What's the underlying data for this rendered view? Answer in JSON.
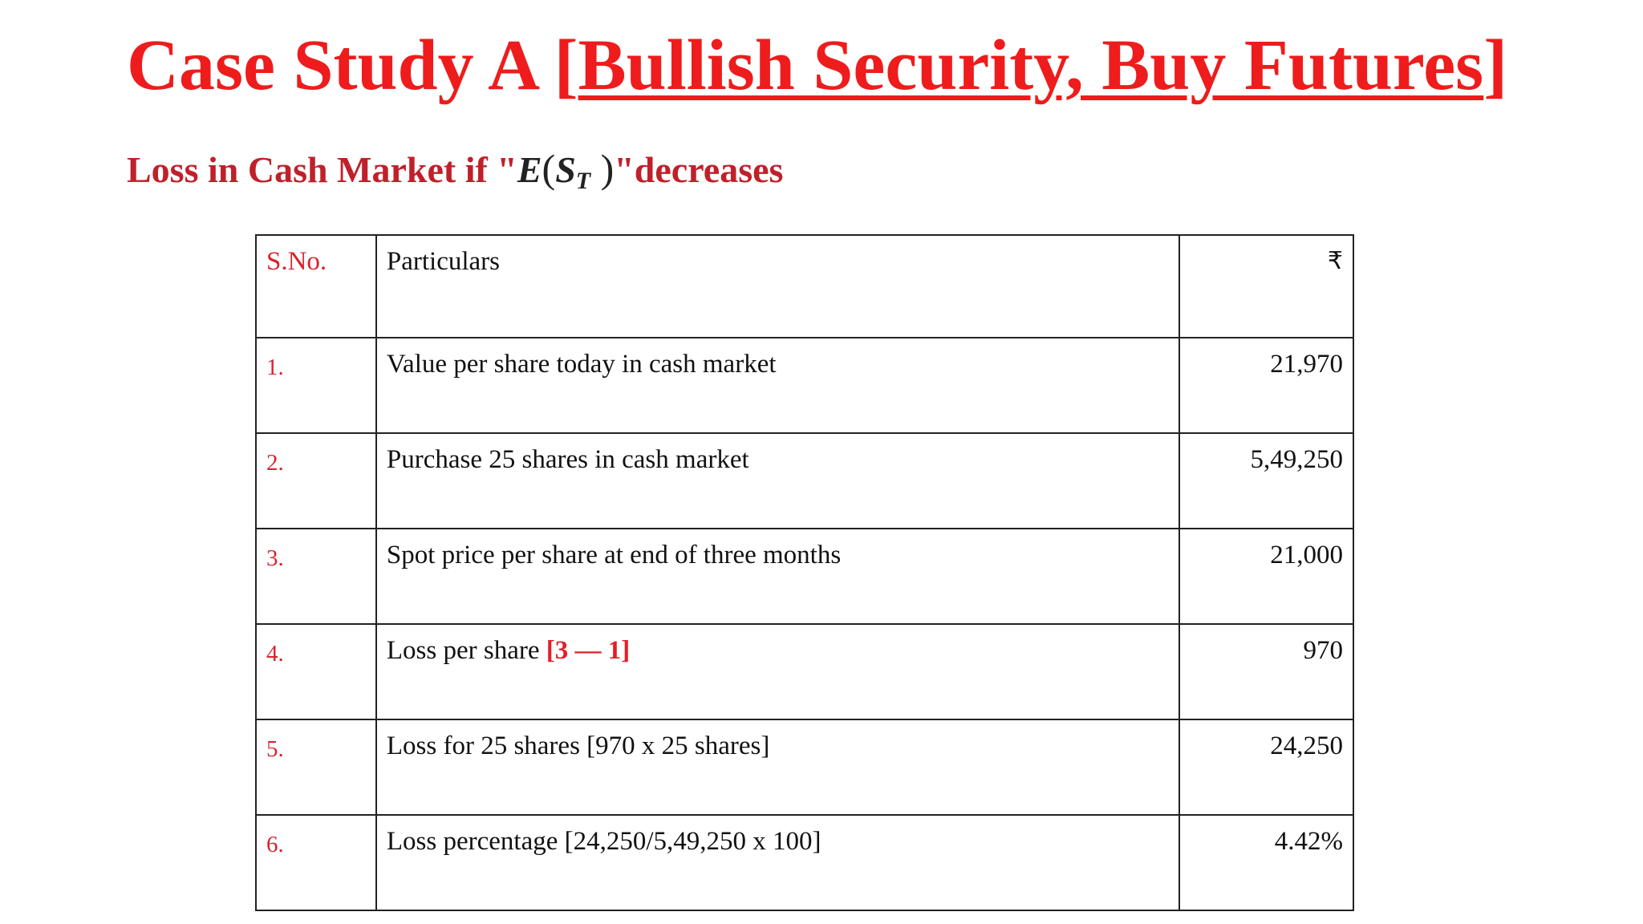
{
  "title": {
    "prefix": "Case Study A [",
    "underlined": "Bullish Security, Buy Futures",
    "suffix": "]"
  },
  "subtitle": {
    "lead": "Loss in Cash Market if \"",
    "math_fn": "E",
    "math_open": "(",
    "math_var": "S",
    "math_sub": "T",
    "math_close": " )",
    "trail": "\"decreases"
  },
  "table": {
    "headers": {
      "sno": "S.No.",
      "particulars": "Particulars",
      "amount": "₹"
    },
    "rows": [
      {
        "sno": "1.",
        "particular": "Value per share today in cash market",
        "ref": "",
        "amount": "21,970"
      },
      {
        "sno": "2.",
        "particular": "Purchase 25 shares in cash market",
        "ref": "",
        "amount": "5,49,250"
      },
      {
        "sno": "3.",
        "particular": "Spot price per share at end of three months",
        "ref": "",
        "amount": "21,000"
      },
      {
        "sno": "4.",
        "particular": "Loss per share ",
        "ref": "[3 — 1]",
        "amount": "970"
      },
      {
        "sno": "5.",
        "particular": "Loss for 25 shares [970 x 25 shares]",
        "ref": "",
        "amount": "24,250"
      },
      {
        "sno": "6.",
        "particular": "Loss percentage [24,250/5,49,250 x 100]",
        "ref": "",
        "amount": "4.42%"
      }
    ]
  },
  "colors": {
    "title": "#ee1c1c",
    "subtitle": "#c0202a",
    "serial": "#d9232b",
    "reference": "#e21f26",
    "border": "#222222"
  }
}
